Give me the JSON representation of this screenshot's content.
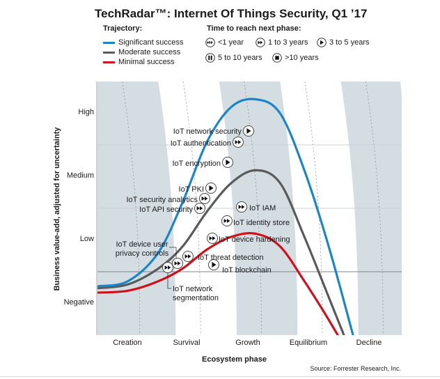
{
  "title": "TechRadar™: Internet Of Things Security, Q1 ’17",
  "legend": {
    "trajectory_heading": "Trajectory:",
    "trajectories": [
      {
        "label": "Significant success",
        "color": "#1a86c8"
      },
      {
        "label": "Moderate success",
        "color": "#5a5a5a"
      },
      {
        "label": "Minimal success",
        "color": "#d0111b"
      }
    ],
    "time_heading": "Time to reach next phase:",
    "times": [
      {
        "label": "<1 year",
        "icon": "triple-forward-icon"
      },
      {
        "label": "1 to 3 years",
        "icon": "double-forward-icon"
      },
      {
        "label": "3 to 5 years",
        "icon": "play-icon"
      },
      {
        "label": "5 to 10 years",
        "icon": "pause-icon"
      },
      {
        "label": ">10 years",
        "icon": "stop-icon"
      }
    ]
  },
  "chart_data": {
    "type": "line",
    "title": "TechRadar™: Internet Of Things Security, Q1 ’17",
    "xlabel": "Ecosystem phase",
    "ylabel": "Business value-add, adjusted for uncertainty",
    "x_categories": [
      "Creation",
      "Survival",
      "Growth",
      "Equilibrium",
      "Decline"
    ],
    "y_categories": [
      "Negative",
      "Low",
      "Medium",
      "High"
    ],
    "xlim": [
      0,
      5
    ],
    "ylim": [
      -1,
      3
    ],
    "grid": true,
    "baseline_y": 0,
    "series": [
      {
        "name": "Significant success",
        "color": "#1a86c8",
        "points": [
          [
            0,
            -0.23
          ],
          [
            0.5,
            -0.15
          ],
          [
            1.0,
            0.3
          ],
          [
            1.4,
            1.1
          ],
          [
            1.8,
            2.05
          ],
          [
            2.2,
            2.6
          ],
          [
            2.6,
            2.72
          ],
          [
            3.0,
            2.5
          ],
          [
            3.4,
            1.6
          ],
          [
            3.8,
            0.4
          ],
          [
            4.2,
            -1.0
          ]
        ]
      },
      {
        "name": "Moderate success",
        "color": "#5a5a5a",
        "points": [
          [
            0,
            -0.26
          ],
          [
            0.5,
            -0.2
          ],
          [
            1.0,
            0.05
          ],
          [
            1.4,
            0.4
          ],
          [
            1.8,
            0.95
          ],
          [
            2.2,
            1.4
          ],
          [
            2.6,
            1.6
          ],
          [
            3.0,
            1.4
          ],
          [
            3.4,
            0.55
          ],
          [
            3.8,
            -0.4
          ],
          [
            4.05,
            -1.0
          ]
        ]
      },
      {
        "name": "Minimal success",
        "color": "#d0111b",
        "points": [
          [
            0,
            -0.33
          ],
          [
            0.5,
            -0.3
          ],
          [
            1.0,
            -0.15
          ],
          [
            1.4,
            0.05
          ],
          [
            1.8,
            0.35
          ],
          [
            2.2,
            0.55
          ],
          [
            2.6,
            0.6
          ],
          [
            3.0,
            0.4
          ],
          [
            3.4,
            -0.15
          ],
          [
            3.7,
            -0.6
          ],
          [
            3.95,
            -1.0
          ]
        ]
      }
    ],
    "technologies": [
      {
        "label": "IoT network security",
        "trajectory": "Significant success",
        "time": "3 to 5 years"
      },
      {
        "label": "IoT authentication",
        "trajectory": "Significant success",
        "time": "1 to 3 years"
      },
      {
        "label": "IoT encryption",
        "trajectory": "Significant success",
        "time": "3 to 5 years"
      },
      {
        "label": "IoT PKI",
        "trajectory": "Significant success",
        "time": "3 to 5 years"
      },
      {
        "label": "IoT security analytics",
        "trajectory": "Significant success",
        "time": "1 to 3 years"
      },
      {
        "label": "IoT API security",
        "trajectory": "Significant success",
        "time": "1 to 3 years"
      },
      {
        "label": "IoT IAM",
        "trajectory": "Moderate success",
        "time": "1 to 3 years"
      },
      {
        "label": "IoT identity store",
        "trajectory": "Moderate success",
        "time": "1 to 3 years"
      },
      {
        "label": "IoT device hardening",
        "trajectory": "Moderate success",
        "time": "1 to 3 years"
      },
      {
        "label": "IoT threat detection",
        "trajectory": "Moderate success",
        "time": "1 to 3 years"
      },
      {
        "label": "IoT device user privacy controls",
        "label_lines": [
          "IoT device user",
          "privacy controls"
        ],
        "trajectory": "Moderate success",
        "time": "1 to 3 years"
      },
      {
        "label": "IoT network segmentation",
        "label_lines": [
          "IoT network",
          "segmentation"
        ],
        "trajectory": "Moderate success",
        "time": "1 to 3 years"
      },
      {
        "label": "IoT blockchain",
        "trajectory": "Minimal success",
        "time": "3 to 5 years"
      }
    ]
  },
  "colors": {
    "band": "#d3dde2",
    "grid": "#c9d1d5",
    "baseline": "#7d8487",
    "divider": "#8a8a8a"
  },
  "source": "Source: Forrester Research, Inc."
}
